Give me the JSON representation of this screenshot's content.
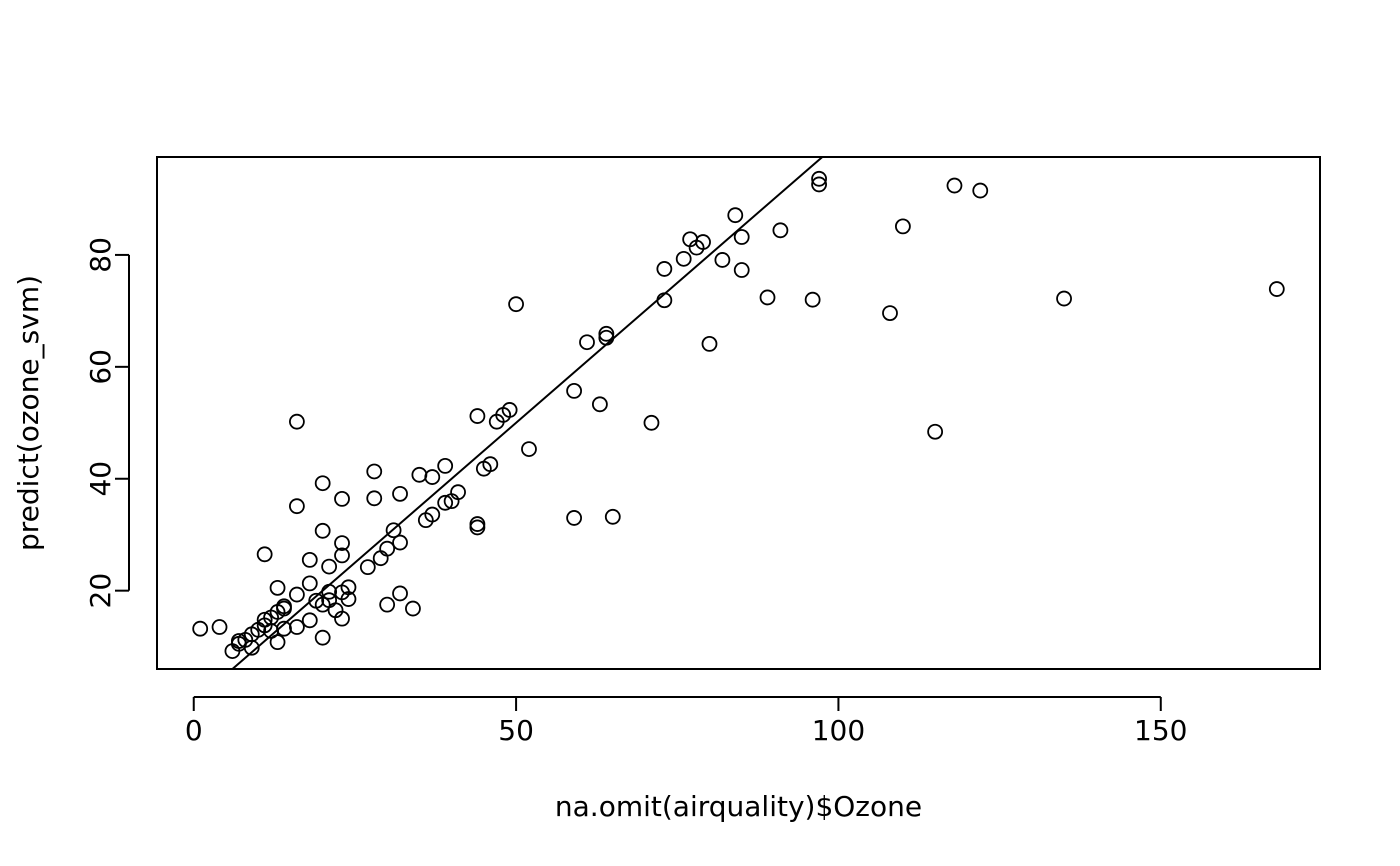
{
  "chart_data": {
    "type": "scatter",
    "title": "",
    "xlabel": "na.omit(airquality)$Ozone",
    "ylabel": "predict(ozone_svm)",
    "xlim": [
      -5.7,
      174.7
    ],
    "ylim": [
      6.0,
      97.5
    ],
    "x_ticks": [
      0,
      50,
      100,
      150
    ],
    "y_ticks": [
      20,
      40,
      60,
      80
    ],
    "grid": false,
    "legend": "none",
    "colors": {
      "points": "#000000",
      "line": "#000000",
      "frame": "#000000"
    },
    "reference_line": {
      "intercept": 0,
      "slope": 1
    },
    "series": [
      {
        "points": [
          [
            1,
            13.2
          ],
          [
            4,
            13.5
          ],
          [
            6,
            9.2
          ],
          [
            7,
            10.5
          ],
          [
            7,
            11.0
          ],
          [
            8,
            11.2
          ],
          [
            9,
            12.2
          ],
          [
            9,
            9.8
          ],
          [
            10,
            13.0
          ],
          [
            11,
            13.8
          ],
          [
            11,
            14.8
          ],
          [
            11,
            26.5
          ],
          [
            12,
            12.8
          ],
          [
            12,
            15.2
          ],
          [
            13,
            16.2
          ],
          [
            13,
            20.5
          ],
          [
            13,
            10.8
          ],
          [
            14,
            17.2
          ],
          [
            14,
            16.8
          ],
          [
            14,
            13.2
          ],
          [
            16,
            13.5
          ],
          [
            16,
            19.3
          ],
          [
            16,
            35.1
          ],
          [
            16,
            50.2
          ],
          [
            18,
            14.7
          ],
          [
            18,
            21.3
          ],
          [
            18,
            25.5
          ],
          [
            19,
            18.2
          ],
          [
            20,
            17.5
          ],
          [
            20,
            11.6
          ],
          [
            20,
            30.7
          ],
          [
            20,
            39.2
          ],
          [
            21,
            24.3
          ],
          [
            21,
            19.8
          ],
          [
            21,
            18.3
          ],
          [
            22,
            16.5
          ],
          [
            23,
            15.0
          ],
          [
            23,
            19.7
          ],
          [
            23,
            26.3
          ],
          [
            23,
            28.5
          ],
          [
            23,
            36.4
          ],
          [
            24,
            18.5
          ],
          [
            24,
            20.6
          ],
          [
            27,
            24.2
          ],
          [
            28,
            36.5
          ],
          [
            28,
            41.3
          ],
          [
            29,
            25.8
          ],
          [
            30,
            27.5
          ],
          [
            30,
            17.5
          ],
          [
            31,
            30.8
          ],
          [
            32,
            19.5
          ],
          [
            32,
            28.6
          ],
          [
            32,
            37.3
          ],
          [
            34,
            16.8
          ],
          [
            35,
            40.7
          ],
          [
            36,
            32.6
          ],
          [
            37,
            33.6
          ],
          [
            37,
            40.3
          ],
          [
            39,
            42.3
          ],
          [
            39,
            35.7
          ],
          [
            40,
            36.0
          ],
          [
            41,
            37.6
          ],
          [
            44,
            31.9
          ],
          [
            44,
            31.3
          ],
          [
            44,
            51.2
          ],
          [
            45,
            41.8
          ],
          [
            46,
            42.6
          ],
          [
            47,
            50.2
          ],
          [
            48,
            51.4
          ],
          [
            49,
            52.3
          ],
          [
            50,
            71.2
          ],
          [
            52,
            45.3
          ],
          [
            59,
            55.7
          ],
          [
            59,
            33.0
          ],
          [
            61,
            64.4
          ],
          [
            63,
            53.3
          ],
          [
            64,
            65.9
          ],
          [
            64,
            65.2
          ],
          [
            65,
            33.2
          ],
          [
            71,
            50.0
          ],
          [
            73,
            71.9
          ],
          [
            73,
            77.5
          ],
          [
            76,
            79.3
          ],
          [
            77,
            82.8
          ],
          [
            78,
            81.3
          ],
          [
            79,
            82.3
          ],
          [
            80,
            64.1
          ],
          [
            82,
            79.1
          ],
          [
            84,
            87.1
          ],
          [
            85,
            83.2
          ],
          [
            85,
            77.3
          ],
          [
            89,
            72.4
          ],
          [
            91,
            84.4
          ],
          [
            96,
            72.0
          ],
          [
            97,
            93.6
          ],
          [
            97,
            92.6
          ],
          [
            108,
            69.6
          ],
          [
            110,
            85.1
          ],
          [
            115,
            48.4
          ],
          [
            118,
            92.4
          ],
          [
            122,
            91.5
          ],
          [
            135,
            72.2
          ],
          [
            168,
            73.9
          ]
        ]
      }
    ]
  }
}
